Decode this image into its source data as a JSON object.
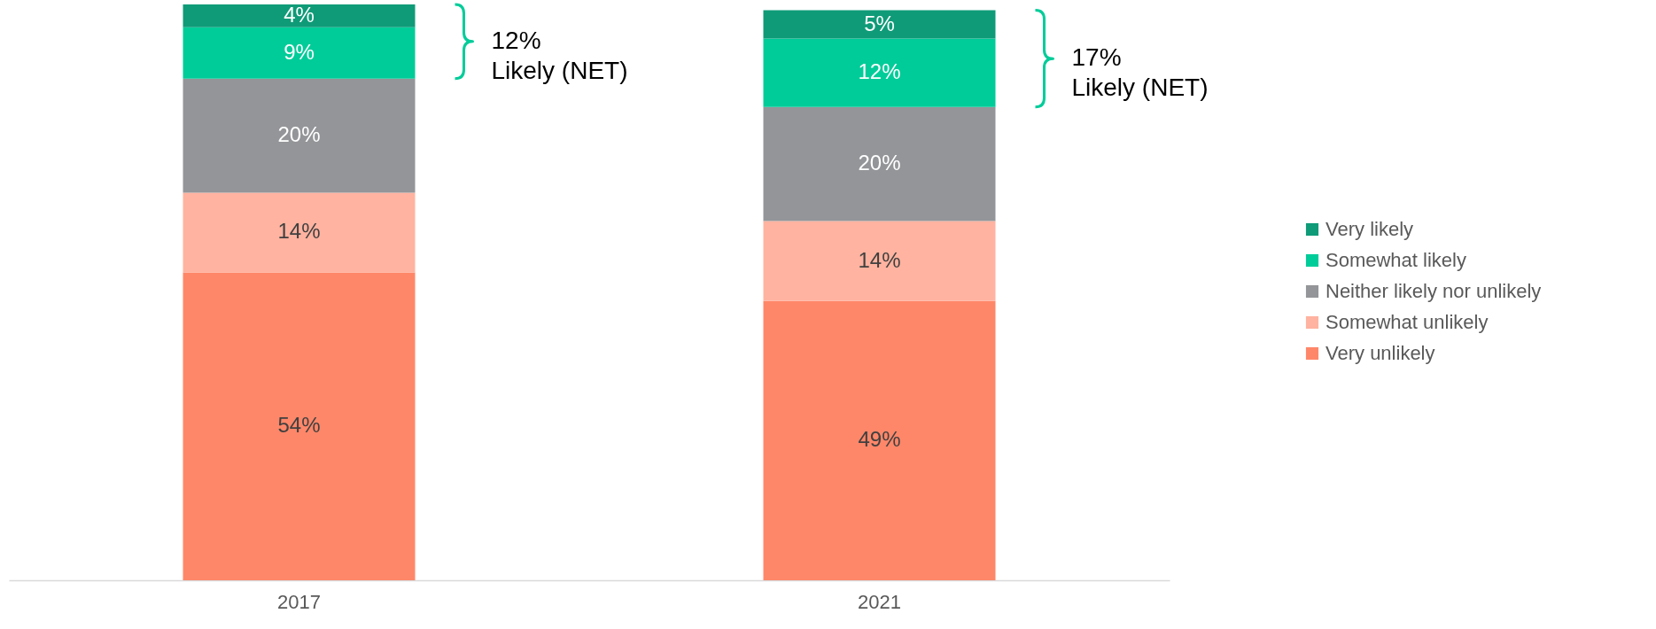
{
  "chart_data": {
    "type": "bar",
    "stacked": true,
    "categories": [
      "2017",
      "2021"
    ],
    "legend": "right",
    "series": [
      {
        "name": "Very unlikely",
        "color": "#ff8769",
        "values": [
          54,
          49
        ],
        "value_labels": [
          "54%",
          "49%"
        ]
      },
      {
        "name": "Somewhat unlikely",
        "color": "#ffb3a0",
        "values": [
          14,
          14
        ],
        "value_labels": [
          "14%",
          "14%"
        ]
      },
      {
        "name": "Neither likely nor unlikely",
        "color": "#939598",
        "values": [
          20,
          20
        ],
        "value_labels": [
          "20%",
          "20%"
        ]
      },
      {
        "name": "Somewhat likely",
        "color": "#00cc99",
        "values": [
          9,
          12
        ],
        "value_labels": [
          "9%",
          "12%"
        ]
      },
      {
        "name": "Very likely",
        "color": "#0f9b78",
        "values": [
          4,
          5
        ],
        "value_labels": [
          "4%",
          "5%"
        ]
      }
    ],
    "annotations": [
      "12%\nLikely (NET)",
      "17%\nLikely (NET)"
    ]
  }
}
